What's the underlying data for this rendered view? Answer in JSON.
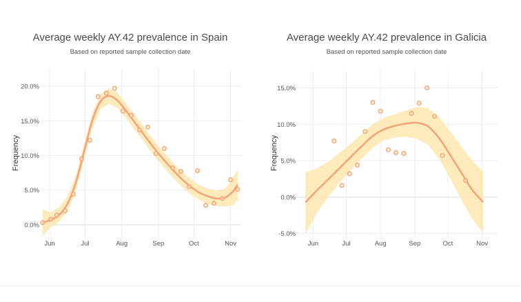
{
  "chart_data": [
    {
      "type": "scatter",
      "title": "Average weekly AY.42 prevalence in Spain",
      "subtitle": "Based on reported sample collection date",
      "ylabel": "Frequency",
      "xlabel": "",
      "xlim": [
        "2021-05-25",
        "2021-11-10"
      ],
      "ylim": [
        -0.019,
        0.225
      ],
      "yticks": [
        0,
        0.05,
        0.1,
        0.15,
        0.2
      ],
      "ytick_labels": [
        "0.0%",
        "5.0%",
        "10.0%",
        "15.0%",
        "20.0%"
      ],
      "xticks": [
        "2021-06-01",
        "2021-07-01",
        "2021-08-01",
        "2021-09-01",
        "2021-10-01",
        "2021-11-01"
      ],
      "xtick_labels": [
        "Jun",
        "Jul",
        "Aug",
        "Sep",
        "Oct",
        "Nov"
      ],
      "grid": true,
      "colors": {
        "points": "#f4a27a",
        "fit": "#f4a27a",
        "band": "#fde7b0"
      },
      "points": [
        {
          "x": "2021-05-26",
          "y": 0.003
        },
        {
          "x": "2021-06-02",
          "y": 0.008
        },
        {
          "x": "2021-06-07",
          "y": 0.014
        },
        {
          "x": "2021-06-14",
          "y": 0.02
        },
        {
          "x": "2021-06-21",
          "y": 0.044
        },
        {
          "x": "2021-06-28",
          "y": 0.095
        },
        {
          "x": "2021-07-05",
          "y": 0.122
        },
        {
          "x": "2021-07-12",
          "y": 0.185
        },
        {
          "x": "2021-07-19",
          "y": 0.19
        },
        {
          "x": "2021-07-26",
          "y": 0.197
        },
        {
          "x": "2021-08-02",
          "y": 0.164
        },
        {
          "x": "2021-08-09",
          "y": 0.158
        },
        {
          "x": "2021-08-16",
          "y": 0.137
        },
        {
          "x": "2021-08-23",
          "y": 0.141
        },
        {
          "x": "2021-08-30",
          "y": 0.103
        },
        {
          "x": "2021-09-06",
          "y": 0.11
        },
        {
          "x": "2021-09-13",
          "y": 0.082
        },
        {
          "x": "2021-09-20",
          "y": 0.077
        },
        {
          "x": "2021-09-27",
          "y": 0.055
        },
        {
          "x": "2021-10-04",
          "y": 0.078
        },
        {
          "x": "2021-10-11",
          "y": 0.028
        },
        {
          "x": "2021-10-18",
          "y": 0.031
        },
        {
          "x": "2021-10-25",
          "y": 0.038
        },
        {
          "x": "2021-11-01",
          "y": 0.065
        },
        {
          "x": "2021-11-07",
          "y": 0.051
        }
      ],
      "fit": [
        {
          "x": "2021-05-26",
          "y": 0.003,
          "lo": -0.016,
          "hi": 0.022
        },
        {
          "x": "2021-06-02",
          "y": 0.007,
          "lo": -0.004,
          "hi": 0.018
        },
        {
          "x": "2021-06-09",
          "y": 0.014,
          "lo": 0.004,
          "hi": 0.025
        },
        {
          "x": "2021-06-16",
          "y": 0.03,
          "lo": 0.019,
          "hi": 0.041
        },
        {
          "x": "2021-06-23",
          "y": 0.06,
          "lo": 0.049,
          "hi": 0.071
        },
        {
          "x": "2021-06-30",
          "y": 0.105,
          "lo": 0.094,
          "hi": 0.116
        },
        {
          "x": "2021-07-07",
          "y": 0.15,
          "lo": 0.139,
          "hi": 0.161
        },
        {
          "x": "2021-07-14",
          "y": 0.178,
          "lo": 0.167,
          "hi": 0.189
        },
        {
          "x": "2021-07-21",
          "y": 0.186,
          "lo": 0.175,
          "hi": 0.197
        },
        {
          "x": "2021-07-28",
          "y": 0.18,
          "lo": 0.169,
          "hi": 0.191
        },
        {
          "x": "2021-08-04",
          "y": 0.166,
          "lo": 0.155,
          "hi": 0.177
        },
        {
          "x": "2021-08-11",
          "y": 0.15,
          "lo": 0.139,
          "hi": 0.161
        },
        {
          "x": "2021-08-18",
          "y": 0.134,
          "lo": 0.123,
          "hi": 0.145
        },
        {
          "x": "2021-08-25",
          "y": 0.118,
          "lo": 0.107,
          "hi": 0.129
        },
        {
          "x": "2021-09-01",
          "y": 0.103,
          "lo": 0.092,
          "hi": 0.114
        },
        {
          "x": "2021-09-08",
          "y": 0.089,
          "lo": 0.078,
          "hi": 0.1
        },
        {
          "x": "2021-09-15",
          "y": 0.076,
          "lo": 0.065,
          "hi": 0.087
        },
        {
          "x": "2021-09-22",
          "y": 0.064,
          "lo": 0.053,
          "hi": 0.075
        },
        {
          "x": "2021-09-29",
          "y": 0.054,
          "lo": 0.043,
          "hi": 0.065
        },
        {
          "x": "2021-10-06",
          "y": 0.046,
          "lo": 0.035,
          "hi": 0.057
        },
        {
          "x": "2021-10-13",
          "y": 0.041,
          "lo": 0.03,
          "hi": 0.052
        },
        {
          "x": "2021-10-20",
          "y": 0.038,
          "lo": 0.027,
          "hi": 0.049
        },
        {
          "x": "2021-10-27",
          "y": 0.039,
          "lo": 0.026,
          "hi": 0.052
        },
        {
          "x": "2021-11-03",
          "y": 0.048,
          "lo": 0.028,
          "hi": 0.068
        },
        {
          "x": "2021-11-07",
          "y": 0.058,
          "lo": 0.036,
          "hi": 0.08
        }
      ]
    },
    {
      "type": "scatter",
      "title": "Average weekly AY.42 prevalence in Galicia",
      "subtitle": "Based on reported sample collection date",
      "ylabel": "Frequency",
      "xlabel": "",
      "xlim": [
        "2021-05-18",
        "2021-11-15"
      ],
      "ylim": [
        -0.056,
        0.176
      ],
      "yticks": [
        -0.05,
        0,
        0.05,
        0.1,
        0.15
      ],
      "ytick_labels": [
        "-5.0%",
        "0.0%",
        "5.0%",
        "10.0%",
        "15.0%"
      ],
      "xticks": [
        "2021-06-01",
        "2021-07-01",
        "2021-08-01",
        "2021-09-01",
        "2021-10-01",
        "2021-11-01"
      ],
      "xtick_labels": [
        "Jun",
        "Jul",
        "Aug",
        "Sep",
        "Oct",
        "Nov"
      ],
      "grid": true,
      "colors": {
        "points": "#f4a27a",
        "fit": "#f4a27a",
        "band": "#fde7b0"
      },
      "points": [
        {
          "x": "2021-06-20",
          "y": 0.077
        },
        {
          "x": "2021-06-27",
          "y": 0.016
        },
        {
          "x": "2021-07-04",
          "y": 0.032
        },
        {
          "x": "2021-07-11",
          "y": 0.044
        },
        {
          "x": "2021-07-18",
          "y": 0.09
        },
        {
          "x": "2021-07-25",
          "y": 0.13
        },
        {
          "x": "2021-08-01",
          "y": 0.118
        },
        {
          "x": "2021-08-08",
          "y": 0.065
        },
        {
          "x": "2021-08-15",
          "y": 0.061
        },
        {
          "x": "2021-08-22",
          "y": 0.06
        },
        {
          "x": "2021-08-29",
          "y": 0.115
        },
        {
          "x": "2021-09-05",
          "y": 0.129
        },
        {
          "x": "2021-09-12",
          "y": 0.15
        },
        {
          "x": "2021-09-19",
          "y": 0.111
        },
        {
          "x": "2021-09-26",
          "y": 0.057
        },
        {
          "x": "2021-10-17",
          "y": 0.023
        }
      ],
      "fit": [
        {
          "x": "2021-05-25",
          "y": -0.007,
          "lo": -0.051,
          "hi": 0.034
        },
        {
          "x": "2021-06-05",
          "y": 0.01,
          "lo": -0.02,
          "hi": 0.04
        },
        {
          "x": "2021-06-15",
          "y": 0.025,
          "lo": 0.001,
          "hi": 0.049
        },
        {
          "x": "2021-06-25",
          "y": 0.04,
          "lo": 0.02,
          "hi": 0.061
        },
        {
          "x": "2021-07-05",
          "y": 0.055,
          "lo": 0.037,
          "hi": 0.073
        },
        {
          "x": "2021-07-15",
          "y": 0.07,
          "lo": 0.053,
          "hi": 0.087
        },
        {
          "x": "2021-07-25",
          "y": 0.084,
          "lo": 0.068,
          "hi": 0.1
        },
        {
          "x": "2021-08-04",
          "y": 0.093,
          "lo": 0.078,
          "hi": 0.109
        },
        {
          "x": "2021-08-14",
          "y": 0.098,
          "lo": 0.082,
          "hi": 0.114
        },
        {
          "x": "2021-08-24",
          "y": 0.101,
          "lo": 0.083,
          "hi": 0.119
        },
        {
          "x": "2021-09-03",
          "y": 0.102,
          "lo": 0.08,
          "hi": 0.124
        },
        {
          "x": "2021-09-13",
          "y": 0.097,
          "lo": 0.072,
          "hi": 0.122
        },
        {
          "x": "2021-09-23",
          "y": 0.081,
          "lo": 0.053,
          "hi": 0.11
        },
        {
          "x": "2021-10-03",
          "y": 0.058,
          "lo": 0.026,
          "hi": 0.09
        },
        {
          "x": "2021-10-13",
          "y": 0.034,
          "lo": -0.003,
          "hi": 0.07
        },
        {
          "x": "2021-10-23",
          "y": 0.01,
          "lo": -0.03,
          "hi": 0.05
        },
        {
          "x": "2021-11-02",
          "y": -0.007,
          "lo": -0.049,
          "hi": 0.035
        }
      ]
    }
  ]
}
